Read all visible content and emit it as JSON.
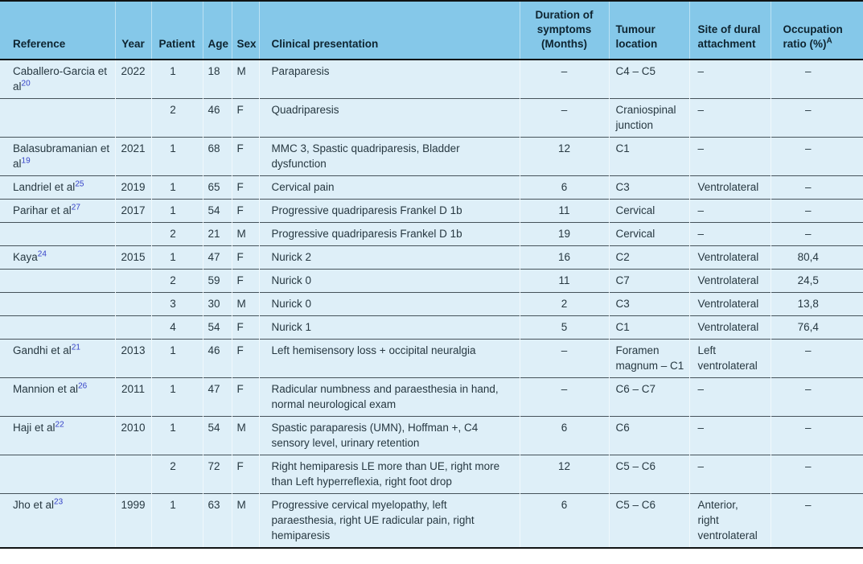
{
  "colors": {
    "header_bg": "#85C8E9",
    "row_bg": "#DEEFF8",
    "citation_blue": "#3642C8"
  },
  "table": {
    "columns": [
      {
        "label": "Reference",
        "sup": ""
      },
      {
        "label": "Year",
        "sup": ""
      },
      {
        "label": "Patient",
        "sup": ""
      },
      {
        "label": "Age",
        "sup": ""
      },
      {
        "label": "Sex",
        "sup": ""
      },
      {
        "label": "Clinical presentation",
        "sup": ""
      },
      {
        "label": "Duration of symptoms (Months)",
        "sup": ""
      },
      {
        "label": "Tumour location",
        "sup": ""
      },
      {
        "label": "Site of dural attachment",
        "sup": ""
      },
      {
        "label": "Occupation ratio (%)",
        "sup": "A"
      }
    ],
    "rows": [
      {
        "reference": "Caballero-Garcia et al",
        "ref_sup": "20",
        "year": "2022",
        "patient": "1",
        "age": "18",
        "sex": "M",
        "clinical": "Paraparesis",
        "duration": "–",
        "tumour": "C4 – C5",
        "site": "–",
        "occupation": "–"
      },
      {
        "reference": "",
        "ref_sup": "",
        "year": "",
        "patient": "2",
        "age": "46",
        "sex": "F",
        "clinical": "Quadriparesis",
        "duration": "–",
        "tumour": "Craniospinal junction",
        "site": "–",
        "occupation": "–"
      },
      {
        "reference": "Balasubramanian et al",
        "ref_sup": "19",
        "year": "2021",
        "patient": "1",
        "age": "68",
        "sex": "F",
        "clinical": "MMC 3, Spastic quadriparesis, Bladder dysfunction",
        "duration": "12",
        "tumour": "C1",
        "site": "–",
        "occupation": "–"
      },
      {
        "reference": "Landriel et al",
        "ref_sup": "25",
        "year": "2019",
        "patient": "1",
        "age": "65",
        "sex": "F",
        "clinical": "Cervical pain",
        "duration": "6",
        "tumour": "C3",
        "site": "Ventrolateral",
        "occupation": "–"
      },
      {
        "reference": "Parihar et al",
        "ref_sup": "27",
        "year": "2017",
        "patient": "1",
        "age": "54",
        "sex": "F",
        "clinical": "Progressive quadriparesis Frankel D 1b",
        "duration": "11",
        "tumour": "Cervical",
        "site": "–",
        "occupation": "–"
      },
      {
        "reference": "",
        "ref_sup": "",
        "year": "",
        "patient": "2",
        "age": "21",
        "sex": "M",
        "clinical": "Progressive quadriparesis Frankel D 1b",
        "duration": "19",
        "tumour": "Cervical",
        "site": "–",
        "occupation": "–"
      },
      {
        "reference": "Kaya",
        "ref_sup": "24",
        "year": "2015",
        "patient": "1",
        "age": "47",
        "sex": "F",
        "clinical": "Nurick 2",
        "duration": "16",
        "tumour": "C2",
        "site": "Ventrolateral",
        "occupation": "80,4"
      },
      {
        "reference": "",
        "ref_sup": "",
        "year": "",
        "patient": "2",
        "age": "59",
        "sex": "F",
        "clinical": "Nurick 0",
        "duration": "11",
        "tumour": "C7",
        "site": "Ventrolateral",
        "occupation": "24,5"
      },
      {
        "reference": "",
        "ref_sup": "",
        "year": "",
        "patient": "3",
        "age": "30",
        "sex": "M",
        "clinical": "Nurick 0",
        "duration": "2",
        "tumour": "C3",
        "site": "Ventrolateral",
        "occupation": "13,8"
      },
      {
        "reference": "",
        "ref_sup": "",
        "year": "",
        "patient": "4",
        "age": "54",
        "sex": "F",
        "clinical": "Nurick 1",
        "duration": "5",
        "tumour": "C1",
        "site": "Ventrolateral",
        "occupation": "76,4"
      },
      {
        "reference": "Gandhi et al",
        "ref_sup": "21",
        "year": "2013",
        "patient": "1",
        "age": "46",
        "sex": "F",
        "clinical": "Left hemisensory loss + occipital neuralgia",
        "duration": "–",
        "tumour": "Foramen magnum – C1",
        "site": "Left ventrolateral",
        "occupation": "–"
      },
      {
        "reference": "Mannion et al",
        "ref_sup": "26",
        "year": "2011",
        "patient": "1",
        "age": "47",
        "sex": "F",
        "clinical": "Radicular numbness and paraesthesia in hand, normal neurological exam",
        "duration": "–",
        "tumour": "C6 – C7",
        "site": "–",
        "occupation": "–"
      },
      {
        "reference": "Haji et al",
        "ref_sup": "22",
        "year": "2010",
        "patient": "1",
        "age": "54",
        "sex": "M",
        "clinical": "Spastic paraparesis (UMN), Hoffman +, C4 sensory level, urinary retention",
        "duration": "6",
        "tumour": "C6",
        "site": "–",
        "occupation": "–"
      },
      {
        "reference": "",
        "ref_sup": "",
        "year": "",
        "patient": "2",
        "age": "72",
        "sex": "F",
        "clinical": "Right hemiparesis LE more than UE, right more than Left hyperreflexia, right foot drop",
        "duration": "12",
        "tumour": "C5 – C6",
        "site": "–",
        "occupation": "–"
      },
      {
        "reference": "Jho et al",
        "ref_sup": "23",
        "year": "1999",
        "patient": "1",
        "age": "63",
        "sex": "M",
        "clinical": "Progressive cervical myelopathy, left paraesthesia, right UE radicular pain, right hemiparesis",
        "duration": "6",
        "tumour": "C5 – C6",
        "site": "Anterior, right ventrolateral",
        "occupation": "–"
      }
    ]
  }
}
